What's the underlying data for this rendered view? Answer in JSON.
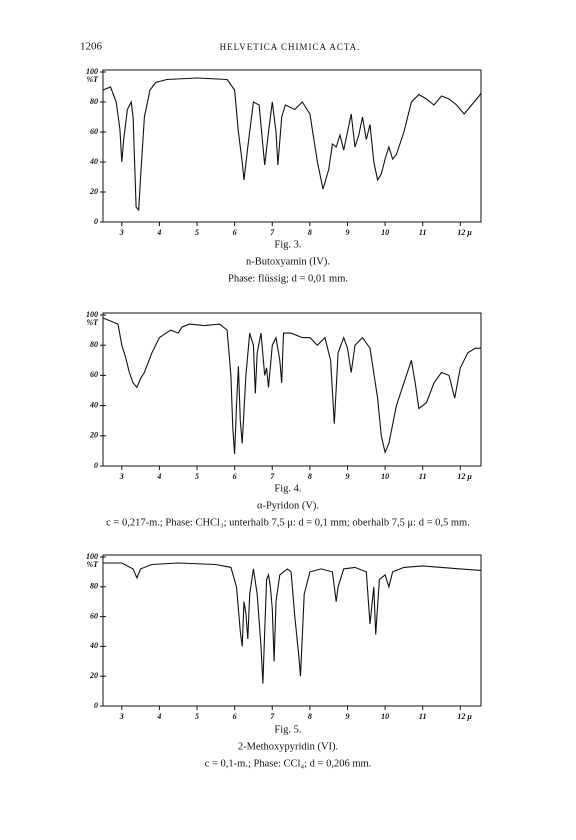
{
  "header": {
    "page_number": "1206",
    "journal": "HELVETICA CHIMICA ACTA."
  },
  "chart_data": [
    {
      "type": "line",
      "figure": "Fig. 3.",
      "compound": "n-Butoxyamin (IV).",
      "conditions": "Phase: flüssig; d = 0,01 mm.",
      "y_label": "%T",
      "color": "#111",
      "x": [
        2.5,
        2.7,
        2.85,
        2.95,
        3.0,
        3.05,
        3.15,
        3.25,
        3.3,
        3.38,
        3.45,
        3.5,
        3.6,
        3.75,
        3.9,
        4.2,
        5.0,
        5.8,
        6.0,
        6.1,
        6.2,
        6.25,
        6.35,
        6.5,
        6.65,
        6.8,
        6.9,
        7.0,
        7.1,
        7.15,
        7.25,
        7.35,
        7.6,
        7.8,
        8.0,
        8.2,
        8.35,
        8.5,
        8.6,
        8.7,
        8.8,
        8.9,
        9.0,
        9.1,
        9.2,
        9.3,
        9.4,
        9.5,
        9.6,
        9.7,
        9.8,
        9.9,
        10.0,
        10.1,
        10.2,
        10.3,
        10.5,
        10.7,
        10.9,
        11.1,
        11.3,
        11.5,
        11.7,
        11.9,
        12.1,
        12.3,
        12.5,
        12.55
      ],
      "values": [
        88,
        90,
        80,
        62,
        40,
        55,
        75,
        80,
        70,
        10,
        8,
        30,
        70,
        88,
        93,
        95,
        96,
        95,
        88,
        60,
        40,
        28,
        50,
        80,
        78,
        38,
        60,
        80,
        60,
        38,
        70,
        78,
        75,
        80,
        72,
        40,
        22,
        35,
        52,
        50,
        58,
        48,
        60,
        72,
        50,
        58,
        70,
        55,
        65,
        40,
        28,
        32,
        42,
        50,
        42,
        45,
        60,
        80,
        85,
        82,
        78,
        84,
        82,
        78,
        72,
        78,
        84,
        86
      ],
      "xlim": [
        2.5,
        12.55
      ],
      "ylim": [
        0,
        100
      ],
      "xticks": [
        3,
        4,
        5,
        6,
        7,
        8,
        9,
        10,
        11,
        {
          "value": 12,
          "label": "12 μ"
        }
      ],
      "yticks": [
        0,
        20,
        40,
        60,
        80,
        100
      ]
    },
    {
      "type": "line",
      "figure": "Fig. 4.",
      "compound": "α-Pyridon (V).",
      "conditions": "c = 0,217-m.; Phase: CHCl₃; unterhalb 7,5 μ: d = 0,1 mm; oberhalb 7,5 μ: d = 0,5 mm.",
      "y_label": "%T",
      "color": "#111",
      "x": [
        2.5,
        2.7,
        2.9,
        3.0,
        3.1,
        3.2,
        3.3,
        3.4,
        3.5,
        3.6,
        3.8,
        4.0,
        4.3,
        4.5,
        4.6,
        4.8,
        5.2,
        5.6,
        5.8,
        5.9,
        5.95,
        6.0,
        6.05,
        6.1,
        6.15,
        6.2,
        6.3,
        6.4,
        6.5,
        6.55,
        6.6,
        6.7,
        6.8,
        6.85,
        6.9,
        7.0,
        7.1,
        7.2,
        7.25,
        7.3,
        7.5,
        7.8,
        8.0,
        8.2,
        8.4,
        8.55,
        8.65,
        8.75,
        8.9,
        9.0,
        9.1,
        9.2,
        9.4,
        9.6,
        9.8,
        9.9,
        10.0,
        10.1,
        10.3,
        10.5,
        10.7,
        10.8,
        10.9,
        11.1,
        11.3,
        11.5,
        11.7,
        11.85,
        12.0,
        12.2,
        12.4,
        12.55
      ],
      "values": [
        98,
        96,
        94,
        80,
        72,
        62,
        55,
        52,
        58,
        62,
        75,
        85,
        90,
        88,
        92,
        94,
        93,
        94,
        90,
        60,
        25,
        8,
        40,
        66,
        30,
        15,
        60,
        88,
        80,
        48,
        75,
        88,
        60,
        65,
        52,
        80,
        85,
        70,
        55,
        88,
        88,
        85,
        85,
        80,
        85,
        70,
        28,
        75,
        85,
        78,
        62,
        80,
        85,
        78,
        45,
        20,
        9,
        15,
        40,
        55,
        70,
        55,
        38,
        42,
        55,
        62,
        60,
        45,
        65,
        75,
        78,
        78
      ],
      "xlim": [
        2.5,
        12.55
      ],
      "ylim": [
        0,
        100
      ],
      "xticks": [
        3,
        4,
        5,
        6,
        7,
        8,
        9,
        10,
        11,
        {
          "value": 12,
          "label": "12 μ"
        }
      ],
      "yticks": [
        0,
        20,
        40,
        60,
        80,
        100
      ]
    },
    {
      "type": "line",
      "figure": "Fig. 5.",
      "compound": "2-Methoxypyridin (VI).",
      "conditions": "c = 0,1-m.; Phase: CCl₄; d = 0,206 mm.",
      "y_label": "%T",
      "color": "#111",
      "x": [
        2.5,
        3.0,
        3.3,
        3.4,
        3.5,
        3.8,
        4.5,
        5.5,
        5.9,
        6.05,
        6.15,
        6.2,
        6.25,
        6.3,
        6.35,
        6.4,
        6.5,
        6.6,
        6.7,
        6.75,
        6.8,
        6.85,
        6.9,
        6.95,
        7.0,
        7.05,
        7.1,
        7.2,
        7.4,
        7.5,
        7.6,
        7.7,
        7.75,
        7.85,
        8.0,
        8.3,
        8.6,
        8.7,
        8.75,
        8.9,
        9.2,
        9.5,
        9.6,
        9.7,
        9.75,
        9.85,
        10.0,
        10.1,
        10.2,
        10.5,
        11.0,
        11.5,
        12.0,
        12.55
      ],
      "values": [
        96,
        96,
        92,
        86,
        92,
        95,
        96,
        95,
        93,
        80,
        50,
        40,
        70,
        62,
        45,
        75,
        92,
        75,
        40,
        15,
        50,
        85,
        88,
        80,
        65,
        30,
        70,
        88,
        92,
        90,
        60,
        35,
        20,
        75,
        90,
        92,
        90,
        70,
        80,
        92,
        93,
        90,
        55,
        80,
        48,
        85,
        88,
        80,
        90,
        93,
        94,
        93,
        92,
        91
      ],
      "xlim": [
        2.5,
        12.55
      ],
      "ylim": [
        0,
        100
      ],
      "xticks": [
        3,
        4,
        5,
        6,
        7,
        8,
        9,
        10,
        11,
        {
          "value": 12,
          "label": "12 μ"
        }
      ],
      "yticks": [
        0,
        20,
        40,
        60,
        80,
        100
      ]
    }
  ]
}
